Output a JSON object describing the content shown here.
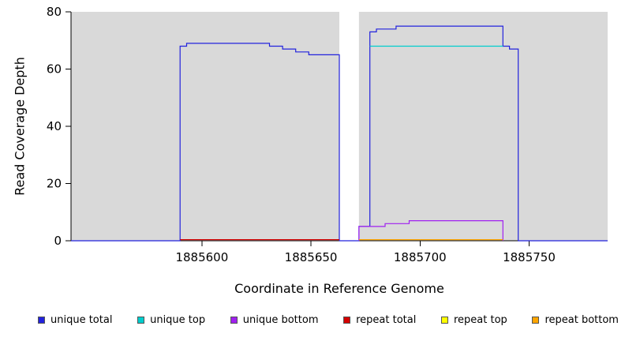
{
  "chart_data": {
    "type": "line",
    "title": "",
    "xlabel": "Coordinate in Reference Genome",
    "ylabel": "Read Coverage Depth",
    "xlim": [
      1885540,
      1885786
    ],
    "ylim": [
      0,
      80
    ],
    "xticks": [
      1885600,
      1885650,
      1885700,
      1885750
    ],
    "yticks": [
      0,
      20,
      40,
      60,
      80
    ],
    "grid": false,
    "legend_position": "bottom",
    "plot_background": "#d9d9d9",
    "axis_color": "#000000",
    "no_data_gap": {
      "x0": 1885663,
      "x1": 1885672,
      "color": "#ffffff"
    },
    "series": [
      {
        "name": "unique total",
        "color": "#2222dd",
        "points": [
          [
            1885540,
            0
          ],
          [
            1885590,
            0
          ],
          [
            1885590,
            68
          ],
          [
            1885593,
            68
          ],
          [
            1885593,
            69
          ],
          [
            1885631,
            69
          ],
          [
            1885631,
            68
          ],
          [
            1885637,
            68
          ],
          [
            1885637,
            67
          ],
          [
            1885643,
            67
          ],
          [
            1885643,
            66
          ],
          [
            1885649,
            66
          ],
          [
            1885649,
            65
          ],
          [
            1885663,
            65
          ],
          [
            1885663,
            0
          ],
          [
            1885672,
            0
          ],
          [
            1885672,
            5
          ],
          [
            1885677,
            5
          ],
          [
            1885677,
            73
          ],
          [
            1885680,
            73
          ],
          [
            1885680,
            74
          ],
          [
            1885689,
            74
          ],
          [
            1885689,
            75
          ],
          [
            1885738,
            75
          ],
          [
            1885738,
            68
          ],
          [
            1885741,
            68
          ],
          [
            1885741,
            67
          ],
          [
            1885745,
            67
          ],
          [
            1885745,
            0
          ],
          [
            1885786,
            0
          ]
        ]
      },
      {
        "name": "unique top",
        "color": "#00cdcd",
        "points": [
          [
            1885677,
            68
          ],
          [
            1885738,
            68
          ]
        ]
      },
      {
        "name": "unique bottom",
        "color": "#a020f0",
        "points": [
          [
            1885672,
            0
          ],
          [
            1885672,
            5
          ],
          [
            1885684,
            5
          ],
          [
            1885684,
            6
          ],
          [
            1885695,
            6
          ],
          [
            1885695,
            7
          ],
          [
            1885738,
            7
          ],
          [
            1885738,
            0
          ]
        ]
      },
      {
        "name": "repeat total",
        "color": "#d40000",
        "points": [
          [
            1885590,
            0.4
          ],
          [
            1885663,
            0.4
          ]
        ]
      },
      {
        "name": "repeat top",
        "color": "#ffff00",
        "points": []
      },
      {
        "name": "repeat bottom",
        "color": "#ffa500",
        "points": [
          [
            1885672,
            0.4
          ],
          [
            1885738,
            0.4
          ]
        ]
      }
    ]
  }
}
